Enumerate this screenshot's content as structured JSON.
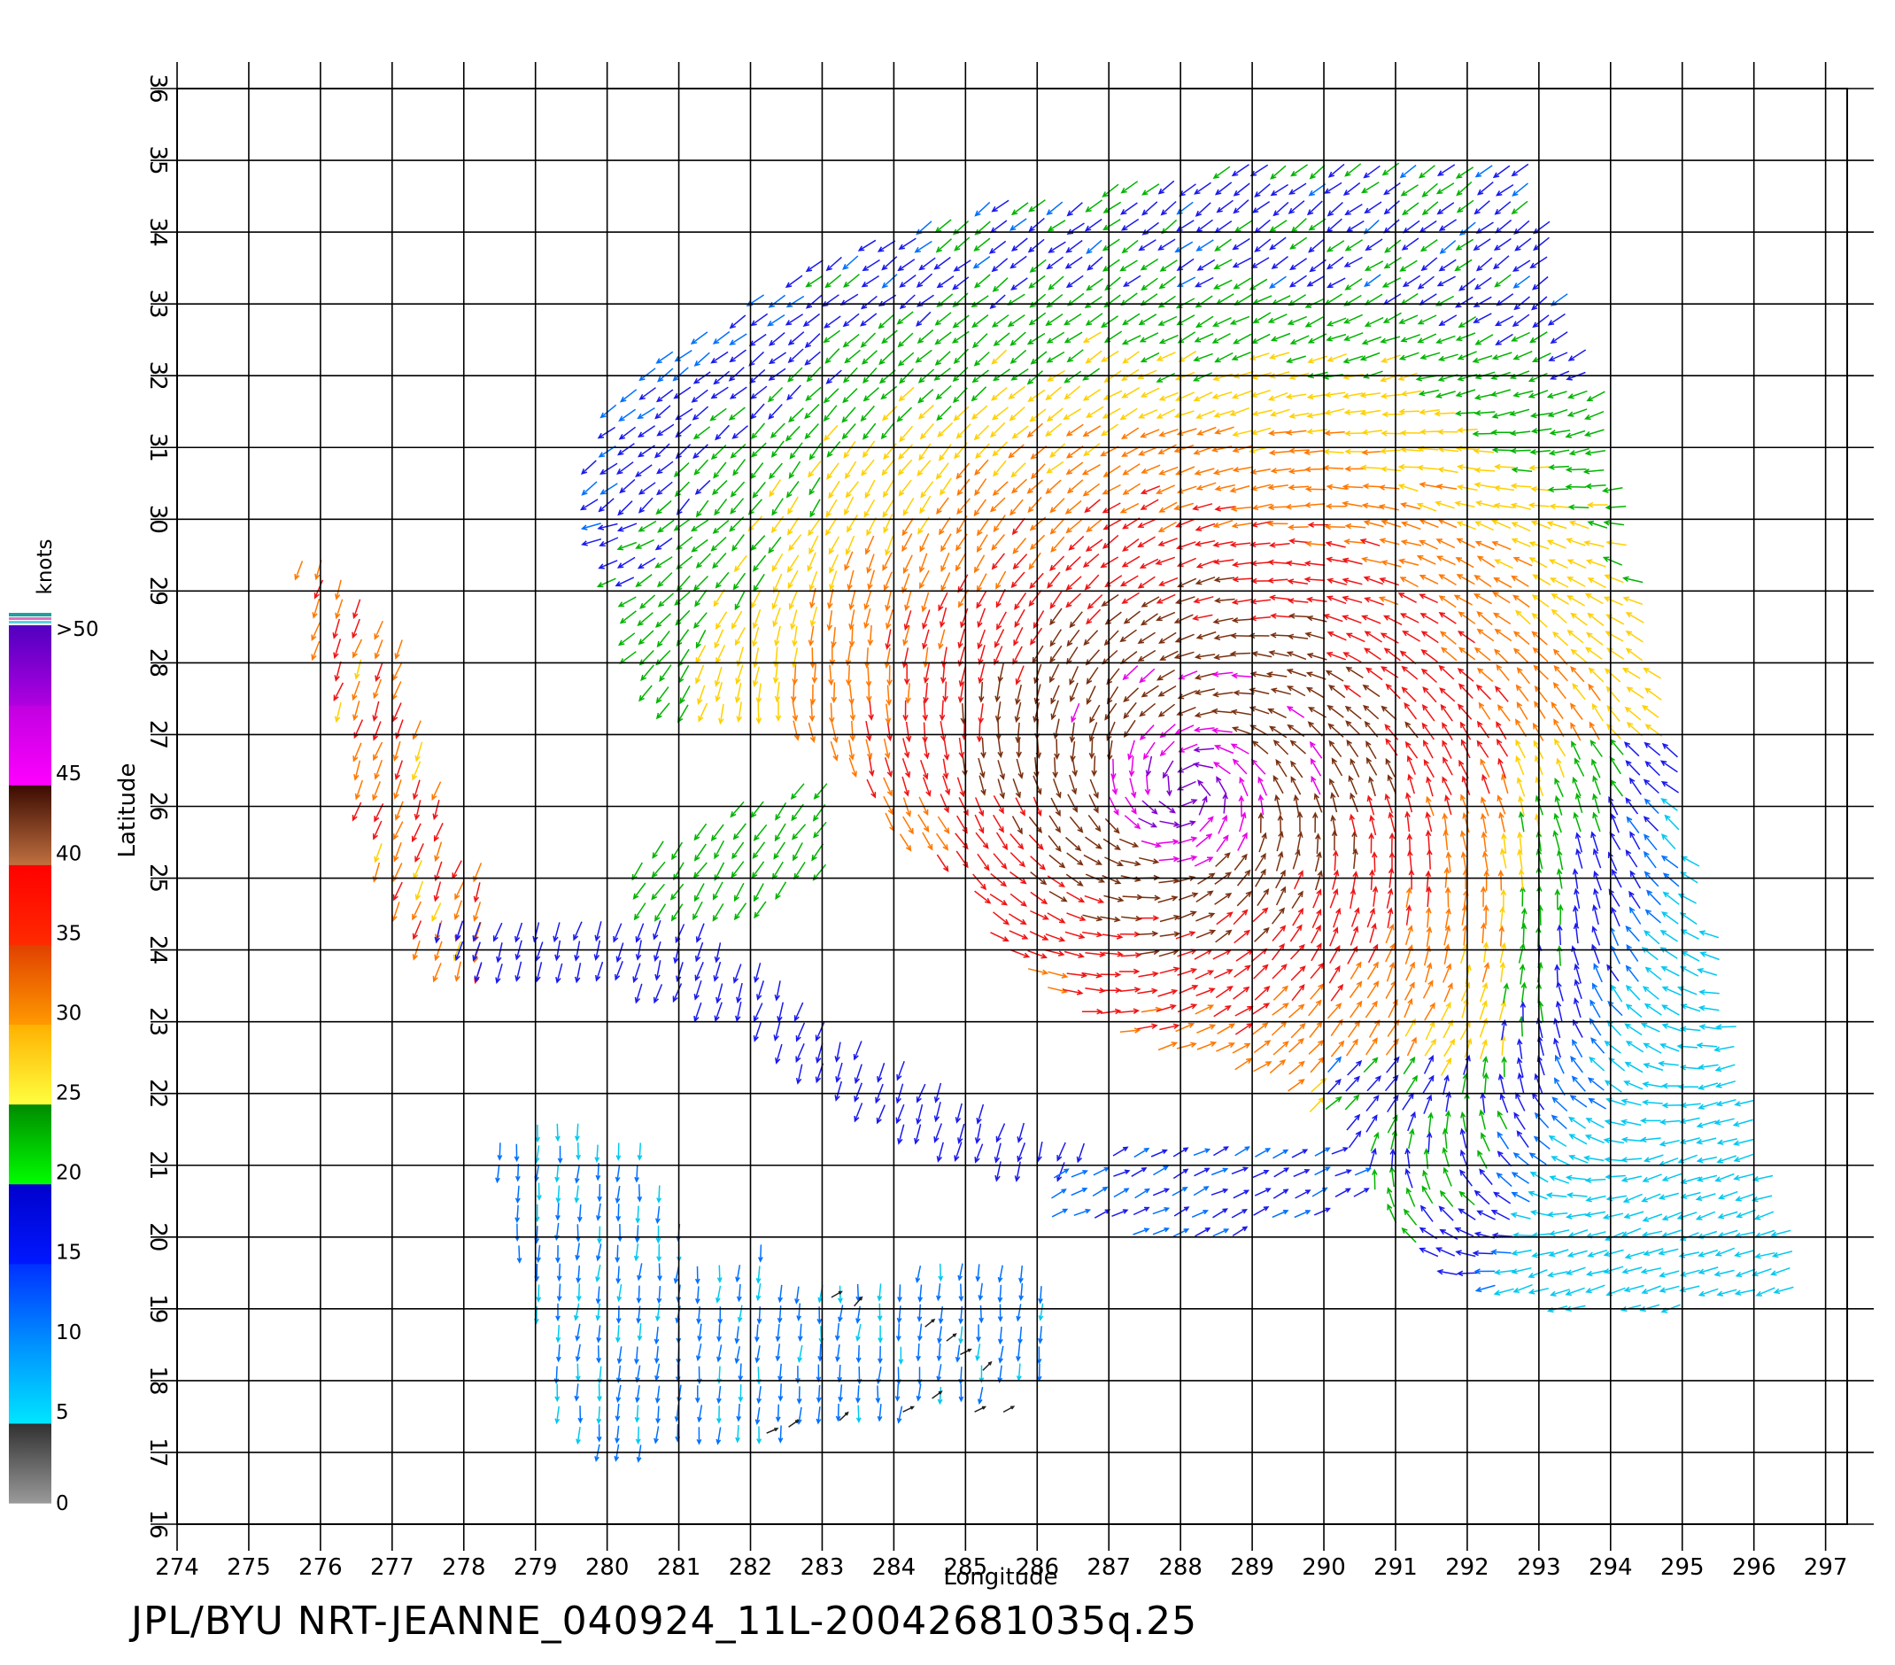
{
  "title_text": "JPL/BYU  NRT-JEANNE_040924_11L-20042681035q.25",
  "axes": {
    "xlabel": "Longitude",
    "ylabel": "Latitude",
    "x_ticks": [
      "274",
      "275",
      "276",
      "277",
      "278",
      "279",
      "280",
      "281",
      "282",
      "283",
      "284",
      "285",
      "286",
      "287",
      "288",
      "289",
      "290",
      "291",
      "292",
      "293",
      "294",
      "295",
      "296",
      "297"
    ],
    "y_ticks": [
      "16",
      "17",
      "18",
      "19",
      "20",
      "21",
      "22",
      "23",
      "24",
      "25",
      "26",
      "27",
      "28",
      "29",
      "30",
      "31",
      "32",
      "33",
      "34",
      "35",
      "36"
    ]
  },
  "colorbar": {
    "unit_label": "knots",
    "labels": [
      "0",
      "5",
      "10",
      "15",
      "20",
      "25",
      "30",
      "35",
      "40",
      "45",
      ">50"
    ],
    "colors": {
      "0": "#7f7f7f",
      "5": "#00e5ff",
      "10": "#0078ff",
      "15": "#0000e6",
      "20": "#00d200",
      "25": "#ffd400",
      "30": "#ff7a00",
      "35": "#ff0000",
      "40": "#7a3010",
      "45": "#ff00ff",
      "50": "#7a00d0"
    }
  },
  "map_data": {
    "type": "wind_vector_field",
    "storm": "JEANNE",
    "storm_center": {
      "lon": 288.1,
      "lat": 26.2
    },
    "x_range": [
      274,
      297
    ],
    "y_range": [
      16,
      36
    ]
  }
}
